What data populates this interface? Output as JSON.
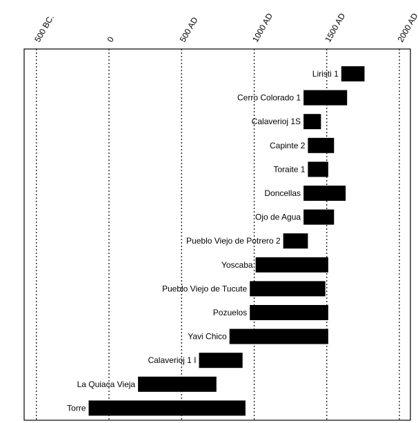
{
  "chart_data": {
    "type": "bar",
    "orientation": "horizontal-range",
    "title": "",
    "xlabel": "",
    "ylabel": "",
    "x_ticks": [
      {
        "value": -500,
        "label": "500 BC."
      },
      {
        "value": 0,
        "label": "0"
      },
      {
        "value": 500,
        "label": "500 AD"
      },
      {
        "value": 1000,
        "label": "1000 AD"
      },
      {
        "value": 1500,
        "label": "1500 AD"
      },
      {
        "value": 2000,
        "label": "2000 AD"
      }
    ],
    "xlim": [
      -500,
      2000
    ],
    "grid": "vertical dashed lines at ticks",
    "colors": {
      "bar": "#000000",
      "grid": "#000000",
      "frame": "#000000",
      "background": "#ffffff"
    },
    "categories": [
      "Liristi 1",
      "Cerro Colorado 1",
      "Calaverioj 1S",
      "Capinte 2",
      "Toraite 1",
      "Doncellas",
      "Ojo de Agua",
      "Pueblo Viejo de Potrero 2",
      "Yoscaba",
      "Pueblo Viejo de Tucute",
      "Pozuelos",
      "Yavi Chico",
      "Calaverioj 1 I",
      "La Quiaca Vieja",
      "Torre"
    ],
    "ranges": [
      [
        1600,
        1760
      ],
      [
        1340,
        1640
      ],
      [
        1340,
        1460
      ],
      [
        1370,
        1550
      ],
      [
        1370,
        1510
      ],
      [
        1340,
        1630
      ],
      [
        1340,
        1550
      ],
      [
        1200,
        1370
      ],
      [
        1010,
        1510
      ],
      [
        970,
        1490
      ],
      [
        970,
        1510
      ],
      [
        830,
        1510
      ],
      [
        620,
        920
      ],
      [
        200,
        740
      ],
      [
        -140,
        940
      ]
    ]
  }
}
